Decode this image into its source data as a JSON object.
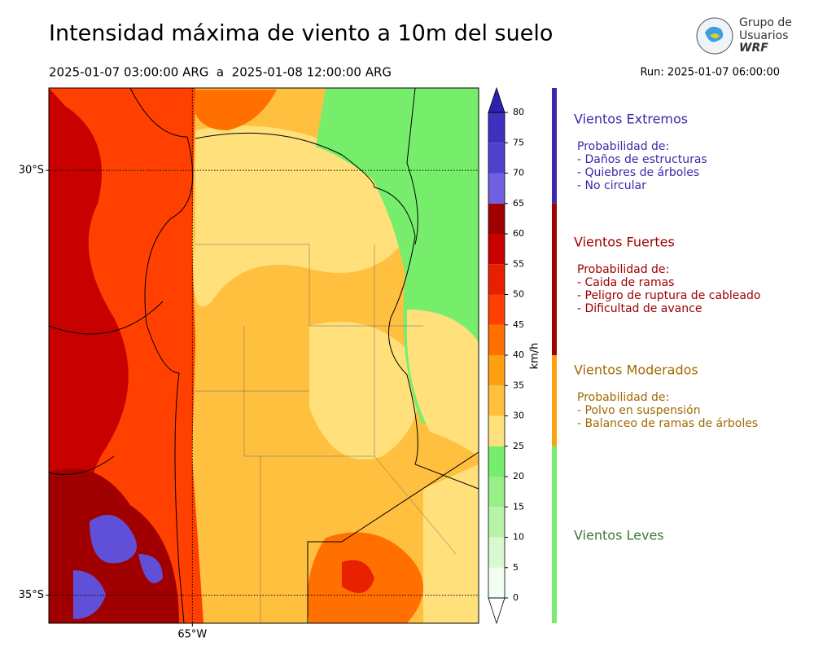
{
  "header": {
    "title": "Intensidad máxima de viento a 10m del suelo",
    "period": "2025-01-07 03:00:00 ARG  a  2025-01-08 12:00:00 ARG",
    "run": "Run: 2025-01-07 06:00:00"
  },
  "logo": {
    "lines": [
      "Grupo de",
      "Usuarios",
      "WRF"
    ]
  },
  "map": {
    "latlim": [
      -29.03,
      -35.33
    ],
    "lonlim": [
      -66.69,
      -61.63
    ],
    "latticks": [
      {
        "value": -30,
        "label": "30°S"
      },
      {
        "value": -35,
        "label": "35°S"
      }
    ],
    "lonticks": [
      {
        "value": -65,
        "label": "65°W"
      }
    ]
  },
  "colorbar": {
    "unit": "km/h",
    "levels": [
      0,
      5,
      10,
      15,
      20,
      25,
      30,
      35,
      40,
      45,
      50,
      55,
      60,
      65,
      70,
      75,
      80
    ],
    "colors": [
      "#f0fff0",
      "#d8f8d0",
      "#b8f4a8",
      "#98ee88",
      "#76ee6c",
      "#ffe07a",
      "#ffc040",
      "#ffa010",
      "#ff7000",
      "#ff4000",
      "#e82000",
      "#c80000",
      "#a00000",
      "#7060e0",
      "#5040d0",
      "#4030c0"
    ],
    "under": "#ffffff",
    "over": "#3020b0"
  },
  "legend": [
    {
      "title": "Vientos Extremos",
      "range": [
        65,
        80
      ],
      "color": "#3a2ab0",
      "text_color": "#3a2aa8",
      "lines": [
        "Probabilidad de:",
        "- Daños de estructuras",
        "- Quiebres de árboles",
        "- No circular"
      ]
    },
    {
      "title": "Vientos Fuertes",
      "range": [
        40,
        65
      ],
      "color": "#a00000",
      "text_color": "#a00000",
      "lines": [
        "Probabilidad de:",
        "- Caida de ramas",
        "- Peligro de ruptura de cableado",
        "- Dificultad de avance"
      ]
    },
    {
      "title": "Vientos Moderados",
      "range": [
        25,
        40
      ],
      "color": "#ffa010",
      "text_color": "#a06a00",
      "lines": [
        "Probabilidad de:",
        "- Polvo en suspensión",
        "- Balanceo de ramas de árboles"
      ]
    },
    {
      "title": "Vientos Leves",
      "range": [
        0,
        25
      ],
      "color": "#76ee6c",
      "text_color": "#3a7a3a"
    }
  ]
}
